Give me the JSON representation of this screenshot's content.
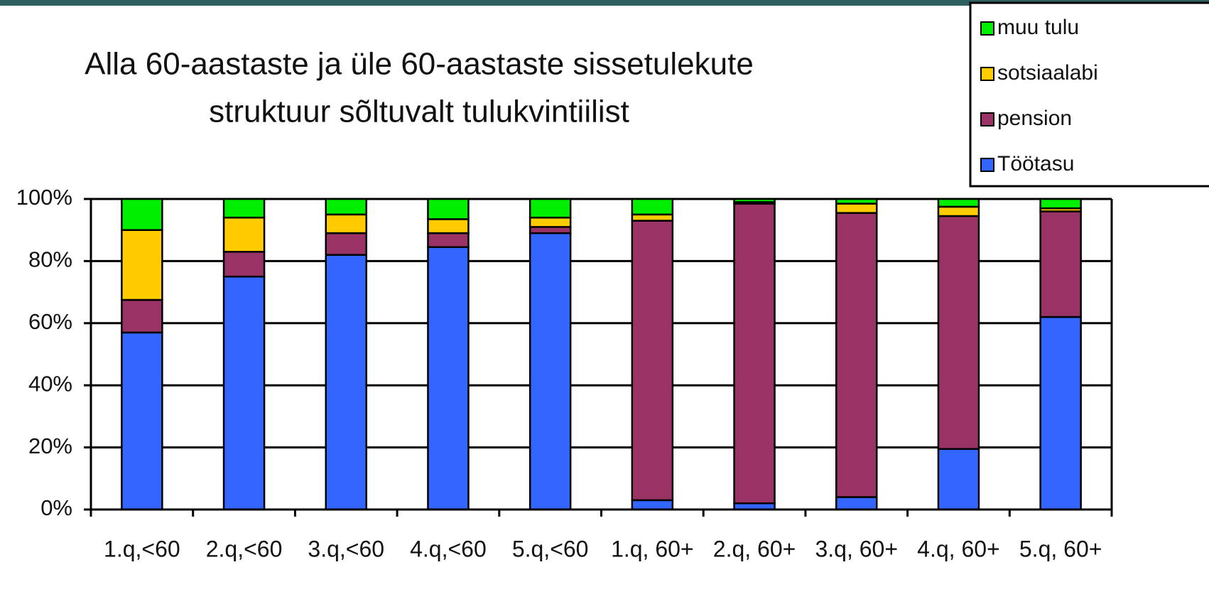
{
  "chart_data": {
    "type": "stacked_bar",
    "title": [
      "Alla 60-aastaste ja üle 60-aastaste sissetulekute",
      "struktuur sõltuvalt tulukvintiilist"
    ],
    "categories": [
      "1.q,<60",
      "2.q,<60",
      "3.q,<60",
      "4.q,<60",
      "5.q,<60",
      "1.q, 60+",
      "2.q, 60+",
      "3.q, 60+",
      "4.q, 60+",
      "5.q, 60+"
    ],
    "series": [
      {
        "name": "Töötasu",
        "color": "#3366ff",
        "values": [
          57,
          75,
          82,
          84.5,
          89,
          3,
          2,
          4,
          19.5,
          62
        ]
      },
      {
        "name": "pension",
        "color": "#993366",
        "values": [
          10.5,
          8,
          7,
          4.5,
          2,
          90,
          96.5,
          91.5,
          75,
          34
        ]
      },
      {
        "name": "sotsiaalabi",
        "color": "#ffcc00",
        "values": [
          22.5,
          11,
          6,
          4.5,
          3,
          2,
          0.5,
          3,
          3,
          1
        ]
      },
      {
        "name": "muu tulu",
        "color": "#00ee00",
        "values": [
          10,
          6,
          5,
          6.5,
          6,
          5,
          1,
          1.5,
          2.5,
          3
        ]
      }
    ],
    "ylim": [
      0,
      100
    ],
    "yticks": [
      {
        "value": 0,
        "label": "0%"
      },
      {
        "value": 20,
        "label": "20%"
      },
      {
        "value": 40,
        "label": "40%"
      },
      {
        "value": 60,
        "label": "60%"
      },
      {
        "value": 80,
        "label": "80%"
      },
      {
        "value": 100,
        "label": "100%"
      }
    ],
    "grid": true,
    "legend": "top-right"
  }
}
